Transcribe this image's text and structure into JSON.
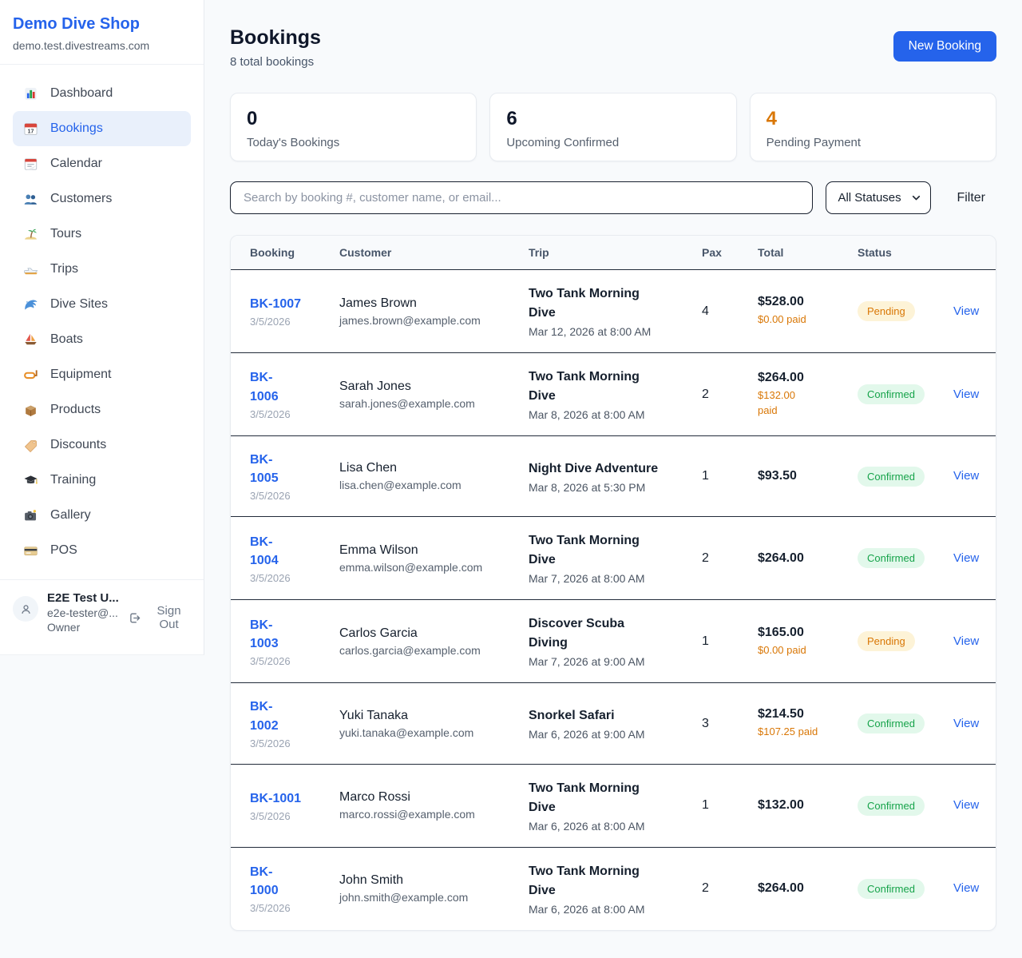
{
  "sidebar": {
    "brand": "Demo Dive Shop",
    "domain": "demo.test.divestreams.com",
    "items": [
      {
        "label": "Dashboard",
        "icon": "bar-chart-icon",
        "active": false
      },
      {
        "label": "Bookings",
        "icon": "calendar-date-icon",
        "active": true
      },
      {
        "label": "Calendar",
        "icon": "tear-off-calendar-icon",
        "active": false
      },
      {
        "label": "Customers",
        "icon": "people-icon",
        "active": false
      },
      {
        "label": "Tours",
        "icon": "island-icon",
        "active": false
      },
      {
        "label": "Trips",
        "icon": "speedboat-icon",
        "active": false
      },
      {
        "label": "Dive Sites",
        "icon": "wave-icon",
        "active": false
      },
      {
        "label": "Boats",
        "icon": "sailboat-icon",
        "active": false
      },
      {
        "label": "Equipment",
        "icon": "dive-mask-icon",
        "active": false
      },
      {
        "label": "Products",
        "icon": "package-icon",
        "active": false
      },
      {
        "label": "Discounts",
        "icon": "tag-icon",
        "active": false
      },
      {
        "label": "Training",
        "icon": "graduation-cap-icon",
        "active": false
      },
      {
        "label": "Gallery",
        "icon": "camera-icon",
        "active": false
      },
      {
        "label": "POS",
        "icon": "credit-card-icon",
        "active": false
      }
    ],
    "user": {
      "name": "E2E Test U...",
      "email": "e2e-tester@...",
      "role": "Owner",
      "sign_out": "Sign Out"
    }
  },
  "header": {
    "title": "Bookings",
    "subtitle": "8 total bookings",
    "new_booking_label": "New Booking"
  },
  "stats": [
    {
      "value": "0",
      "label": "Today's Bookings",
      "accent": "dark"
    },
    {
      "value": "6",
      "label": "Upcoming Confirmed",
      "accent": "dark"
    },
    {
      "value": "4",
      "label": "Pending Payment",
      "accent": "orange"
    }
  ],
  "filters": {
    "search_placeholder": "Search by booking #, customer name, or email...",
    "status_select": "All Statuses",
    "filter_label": "Filter"
  },
  "table": {
    "columns": [
      "Booking",
      "Customer",
      "Trip",
      "Pax",
      "Total",
      "Status"
    ],
    "view_label": "View",
    "rows": [
      {
        "id": "BK-1007",
        "id_wrapped": false,
        "date": "3/5/2026",
        "customer": "James Brown",
        "email": "james.brown@example.com",
        "trip": "Two Tank Morning Dive",
        "trip_time": "Mar 12, 2026 at 8:00 AM",
        "pax": "4",
        "total": "$528.00",
        "paid": "$0.00 paid",
        "paid_wrapped": false,
        "status": "Pending"
      },
      {
        "id": "BK-1006",
        "id_wrapped": true,
        "date": "3/5/2026",
        "customer": "Sarah Jones",
        "email": "sarah.jones@example.com",
        "trip": "Two Tank Morning Dive",
        "trip_time": "Mar 8, 2026 at 8:00 AM",
        "pax": "2",
        "total": "$264.00",
        "paid": "$132.00 paid",
        "paid_wrapped": true,
        "status": "Confirmed"
      },
      {
        "id": "BK-1005",
        "id_wrapped": true,
        "date": "3/5/2026",
        "customer": "Lisa Chen",
        "email": "lisa.chen@example.com",
        "trip": "Night Dive Adventure",
        "trip_time": "Mar 8, 2026 at 5:30 PM",
        "pax": "1",
        "total": "$93.50",
        "paid": null,
        "paid_wrapped": false,
        "status": "Confirmed"
      },
      {
        "id": "BK-1004",
        "id_wrapped": true,
        "date": "3/5/2026",
        "customer": "Emma Wilson",
        "email": "emma.wilson@example.com",
        "trip": "Two Tank Morning Dive",
        "trip_time": "Mar 7, 2026 at 8:00 AM",
        "pax": "2",
        "total": "$264.00",
        "paid": null,
        "paid_wrapped": false,
        "status": "Confirmed"
      },
      {
        "id": "BK-1003",
        "id_wrapped": true,
        "date": "3/5/2026",
        "customer": "Carlos Garcia",
        "email": "carlos.garcia@example.com",
        "trip": "Discover Scuba Diving",
        "trip_time": "Mar 7, 2026 at 9:00 AM",
        "pax": "1",
        "total": "$165.00",
        "paid": "$0.00 paid",
        "paid_wrapped": false,
        "status": "Pending"
      },
      {
        "id": "BK-1002",
        "id_wrapped": true,
        "date": "3/5/2026",
        "customer": "Yuki Tanaka",
        "email": "yuki.tanaka@example.com",
        "trip": "Snorkel Safari",
        "trip_time": "Mar 6, 2026 at 9:00 AM",
        "pax": "3",
        "total": "$214.50",
        "paid": "$107.25 paid",
        "paid_wrapped": false,
        "status": "Confirmed"
      },
      {
        "id": "BK-1001",
        "id_wrapped": false,
        "date": "3/5/2026",
        "customer": "Marco Rossi",
        "email": "marco.rossi@example.com",
        "trip": "Two Tank Morning Dive",
        "trip_time": "Mar 6, 2026 at 8:00 AM",
        "pax": "1",
        "total": "$132.00",
        "paid": null,
        "paid_wrapped": false,
        "status": "Confirmed"
      },
      {
        "id": "BK-1000",
        "id_wrapped": true,
        "date": "3/5/2026",
        "customer": "John Smith",
        "email": "john.smith@example.com",
        "trip": "Two Tank Morning Dive",
        "trip_time": "Mar 6, 2026 at 8:00 AM",
        "pax": "2",
        "total": "$264.00",
        "paid": null,
        "paid_wrapped": false,
        "status": "Confirmed"
      }
    ]
  },
  "colors": {
    "accent": "#2563eb",
    "orange": "#d97706",
    "green": "#16a34a",
    "pending_badge_bg": "#fdf3d7",
    "confirmed_badge_bg": "#e2f8eb",
    "page_bg": "#f8fafc",
    "row_divider": "#222b3a"
  }
}
